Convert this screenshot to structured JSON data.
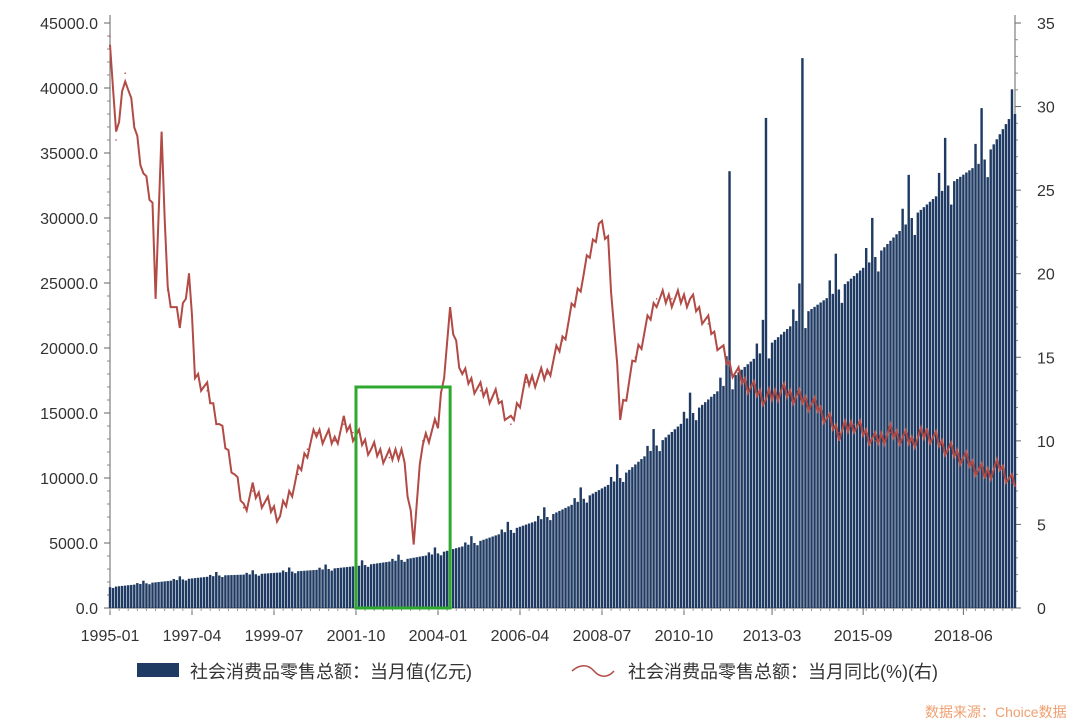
{
  "chart_data": {
    "type": "bar+line",
    "x_ticks": [
      "1995-01",
      "1997-04",
      "1999-07",
      "2001-10",
      "2004-01",
      "2006-04",
      "2008-07",
      "2010-10",
      "2013-03",
      "2015-09",
      "2018-06"
    ],
    "y_left": {
      "ticks": [
        "0.0",
        "5000.0",
        "10000.0",
        "15000.0",
        "20000.0",
        "25000.0",
        "30000.0",
        "35000.0",
        "40000.0",
        "45000.0"
      ],
      "range": [
        0,
        45000
      ]
    },
    "y_right": {
      "ticks": [
        "0",
        "5",
        "10",
        "15",
        "20",
        "25",
        "30",
        "35"
      ],
      "range": [
        0,
        35
      ]
    },
    "series": [
      {
        "name": "社会消费品零售总额：当月值(亿元)",
        "type": "bar",
        "color": "#1f3b63",
        "points": [
          [
            "1995-01",
            1600
          ],
          [
            "1996-01",
            1900
          ],
          [
            "1997-01",
            2200
          ],
          [
            "1998-01",
            2500
          ],
          [
            "1999-01",
            2600
          ],
          [
            "2000-01",
            2800
          ],
          [
            "2001-01",
            3000
          ],
          [
            "2002-01",
            3300
          ],
          [
            "2003-01",
            3700
          ],
          [
            "2004-01",
            4200
          ],
          [
            "2005-01",
            5000
          ],
          [
            "2006-01",
            6000
          ],
          [
            "2007-01",
            7000
          ],
          [
            "2008-01",
            8400
          ],
          [
            "2009-01",
            10000
          ],
          [
            "2010-01",
            12500
          ],
          [
            "2011-01",
            15000
          ],
          [
            "2012-01",
            17500
          ],
          [
            "2013-01",
            20000
          ],
          [
            "2014-01",
            22500
          ],
          [
            "2015-01",
            24500
          ],
          [
            "2016-01",
            27000
          ],
          [
            "2017-01",
            30000
          ],
          [
            "2018-01",
            32500
          ],
          [
            "2019-01",
            34500
          ],
          [
            "2019-10",
            38000
          ]
        ],
        "spikes": [
          [
            "2012-01",
            33600
          ],
          [
            "2013-01",
            37700
          ],
          [
            "2014-01",
            42300
          ]
        ]
      },
      {
        "name": "社会消费品零售总额：当月同比(%)(右)",
        "type": "line",
        "axis": "right",
        "color": "#b24a45",
        "points": [
          [
            "1995-01",
            34.2
          ],
          [
            "1995-03",
            28.0
          ],
          [
            "1995-06",
            32.0
          ],
          [
            "1995-09",
            29.0
          ],
          [
            "1995-12",
            26.0
          ],
          [
            "1996-03",
            24.0
          ],
          [
            "1996-04",
            19.0
          ],
          [
            "1996-06",
            28.0
          ],
          [
            "1996-08",
            19.0
          ],
          [
            "1996-12",
            17.0
          ],
          [
            "1997-03",
            20.0
          ],
          [
            "1997-05",
            14.0
          ],
          [
            "1997-09",
            13.0
          ],
          [
            "1998-01",
            11.0
          ],
          [
            "1998-06",
            8.0
          ],
          [
            "1998-09",
            6.0
          ],
          [
            "1998-12",
            7.0
          ],
          [
            "1999-06",
            6.0
          ],
          [
            "1999-09",
            5.5
          ],
          [
            "2000-03",
            8.0
          ],
          [
            "2000-06",
            9.5
          ],
          [
            "2000-09",
            10.5
          ],
          [
            "2001-03",
            10.0
          ],
          [
            "2001-06",
            11.0
          ],
          [
            "2001-09",
            10.5
          ],
          [
            "2002-03",
            9.5
          ],
          [
            "2002-09",
            9.0
          ],
          [
            "2003-01",
            9.5
          ],
          [
            "2003-05",
            4.3
          ],
          [
            "2003-08",
            10.0
          ],
          [
            "2004-01",
            11.0
          ],
          [
            "2004-05",
            17.5
          ],
          [
            "2004-09",
            14.0
          ],
          [
            "2005-03",
            13.0
          ],
          [
            "2005-09",
            12.5
          ],
          [
            "2006-01",
            11.0
          ],
          [
            "2006-06",
            13.5
          ],
          [
            "2007-01",
            14.0
          ],
          [
            "2007-06",
            16.0
          ],
          [
            "2008-01",
            20.0
          ],
          [
            "2008-06",
            23.0
          ],
          [
            "2008-09",
            22.0
          ],
          [
            "2009-01",
            11.5
          ],
          [
            "2009-06",
            15.0
          ],
          [
            "2010-01",
            18.5
          ],
          [
            "2010-06",
            18.5
          ],
          [
            "2010-12",
            18.5
          ],
          [
            "2011-06",
            17.0
          ],
          [
            "2012-01",
            14.5
          ],
          [
            "2012-06",
            13.5
          ],
          [
            "2013-01",
            12.5
          ],
          [
            "2013-06",
            13.0
          ],
          [
            "2014-01",
            12.5
          ],
          [
            "2014-06",
            12.0
          ],
          [
            "2015-01",
            10.5
          ],
          [
            "2015-06",
            11.0
          ],
          [
            "2016-01",
            10.0
          ],
          [
            "2016-06",
            10.5
          ],
          [
            "2017-01",
            10.0
          ],
          [
            "2017-06",
            10.5
          ],
          [
            "2018-01",
            9.5
          ],
          [
            "2018-06",
            9.0
          ],
          [
            "2019-01",
            8.0
          ],
          [
            "2019-06",
            8.5
          ],
          [
            "2019-10",
            7.5
          ]
        ]
      }
    ],
    "highlight_box": {
      "x_from": "2001-10",
      "x_to": "2004-05",
      "y_from": 0,
      "y_to": 17000,
      "color": "#2fa82f"
    },
    "legend_placement": "bottom"
  },
  "source_note": "数据来源：Choice数据"
}
